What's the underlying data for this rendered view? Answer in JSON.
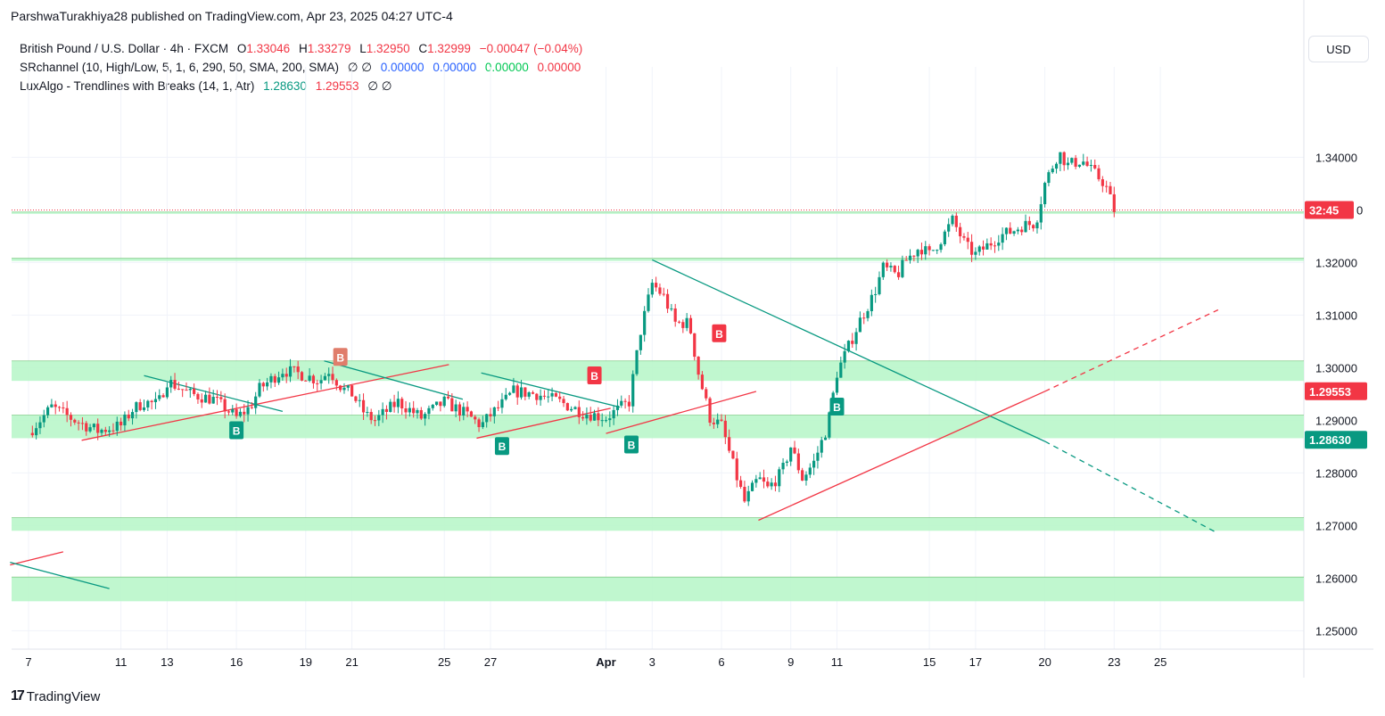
{
  "header": {
    "published": "ParshwaTurakhiya28 published on TradingView.com, Apr 23, 2025 04:27 UTC-4"
  },
  "legend": {
    "symbol": "British Pound / U.S. Dollar · 4h · FXCM",
    "o_label": "O",
    "o_value": "1.33046",
    "h_label": "H",
    "h_value": "1.33279",
    "l_label": "L",
    "l_value": "1.32950",
    "c_label": "C",
    "c_value": "1.32999",
    "change": "−0.00047 (−0.04%)",
    "sr_name": "SRchannel (10, High/Low, 5, 1, 6, 290, 50, SMA, 200, SMA)",
    "sr_sym": "∅ ∅",
    "sr_v1": "0.00000",
    "sr_v2": "0.00000",
    "sr_v3": "0.00000",
    "sr_v4": "0.00000",
    "lux_name": "LuxAlgo - Trendlines with Breaks (14, 1, Atr)",
    "lux_v1": "1.28630",
    "lux_v2": "1.29553",
    "lux_sym": "∅ ∅"
  },
  "currency_button": "USD",
  "brand": {
    "logo": "17",
    "name": "TradingView"
  },
  "price_labels": {
    "countdown": "32:45",
    "countdown_tail": "0",
    "red_level": "1.29553",
    "teal_level": "1.28630"
  },
  "colors": {
    "up": "#089981",
    "down": "#f23645",
    "zone": "#b9f6ca",
    "zone_line": "#4caf50",
    "teal_line": "#089981",
    "red_line": "#f23645"
  },
  "chart_data": {
    "type": "candlestick",
    "symbol": "GBPUSD",
    "timeframe": "4h",
    "y_ticks": [
      "1.34000",
      "1.32000",
      "1.31000",
      "1.30000",
      "1.29000",
      "1.28000",
      "1.27000",
      "1.26000",
      "1.25000"
    ],
    "ylim": [
      1.2465,
      1.3555
    ],
    "x_ticks": [
      {
        "label": "7",
        "day": 0
      },
      {
        "label": "11",
        "day": 4
      },
      {
        "label": "13",
        "day": 6
      },
      {
        "label": "16",
        "day": 9
      },
      {
        "label": "19",
        "day": 12
      },
      {
        "label": "21",
        "day": 14
      },
      {
        "label": "25",
        "day": 18
      },
      {
        "label": "27",
        "day": 20
      },
      {
        "label": "Apr",
        "day": 25
      },
      {
        "label": "3",
        "day": 27
      },
      {
        "label": "6",
        "day": 30
      },
      {
        "label": "9",
        "day": 33
      },
      {
        "label": "11",
        "day": 35
      },
      {
        "label": "15",
        "day": 39
      },
      {
        "label": "17",
        "day": 41
      },
      {
        "label": "20",
        "day": 44
      },
      {
        "label": "23",
        "day": 47
      },
      {
        "label": "25",
        "day": 49
      }
    ],
    "x_bold": [
      "Apr"
    ],
    "sr_zones": [
      [
        1.2975,
        1.3013
      ],
      [
        1.2866,
        1.291
      ],
      [
        1.269,
        1.2715
      ],
      [
        1.2556,
        1.2602
      ],
      [
        1.3203,
        1.3208
      ],
      [
        1.3293,
        1.3296
      ]
    ],
    "close_path": [
      [
        0.0,
        1.2876
      ],
      [
        1.0,
        1.2925
      ],
      [
        2.0,
        1.29
      ],
      [
        3.0,
        1.288
      ],
      [
        4.0,
        1.289
      ],
      [
        4.5,
        1.292
      ],
      [
        5.0,
        1.2935
      ],
      [
        5.6,
        1.293
      ],
      [
        6.0,
        1.2975
      ],
      [
        6.6,
        1.296
      ],
      [
        7.0,
        1.295
      ],
      [
        8.0,
        1.294
      ],
      [
        8.6,
        1.292
      ],
      [
        9.0,
        1.2905
      ],
      [
        9.6,
        1.2925
      ],
      [
        10.0,
        1.296
      ],
      [
        11.0,
        1.2995
      ],
      [
        11.6,
        1.299
      ],
      [
        12.0,
        1.2985
      ],
      [
        12.6,
        1.2975
      ],
      [
        13.0,
        1.2995
      ],
      [
        13.6,
        1.296
      ],
      [
        14.0,
        1.295
      ],
      [
        14.6,
        1.291
      ],
      [
        15.0,
        1.29
      ],
      [
        16.0,
        1.2935
      ],
      [
        17.0,
        1.2905
      ],
      [
        18.0,
        1.2935
      ],
      [
        19.0,
        1.291
      ],
      [
        19.6,
        1.289
      ],
      [
        20.0,
        1.291
      ],
      [
        20.6,
        1.2935
      ],
      [
        21.0,
        1.2955
      ],
      [
        22.0,
        1.295
      ],
      [
        23.0,
        1.2935
      ],
      [
        24.0,
        1.2915
      ],
      [
        25.0,
        1.2905
      ],
      [
        26.0,
        1.2935
      ],
      [
        26.5,
        1.307
      ],
      [
        27.0,
        1.316
      ],
      [
        27.5,
        1.3135
      ],
      [
        28.0,
        1.3085
      ],
      [
        28.6,
        1.3085
      ],
      [
        29.0,
        1.299
      ],
      [
        29.5,
        1.2905
      ],
      [
        30.0,
        1.289
      ],
      [
        30.6,
        1.28
      ],
      [
        31.0,
        1.2745
      ],
      [
        31.6,
        1.279
      ],
      [
        32.0,
        1.277
      ],
      [
        32.6,
        1.28
      ],
      [
        33.0,
        1.285
      ],
      [
        33.5,
        1.279
      ],
      [
        34.0,
        1.282
      ],
      [
        34.6,
        1.289
      ],
      [
        35.0,
        1.299
      ],
      [
        35.6,
        1.305
      ],
      [
        36.0,
        1.309
      ],
      [
        36.6,
        1.314
      ],
      [
        37.0,
        1.319
      ],
      [
        37.6,
        1.3175
      ],
      [
        38.0,
        1.3205
      ],
      [
        38.6,
        1.323
      ],
      [
        39.0,
        1.3215
      ],
      [
        39.6,
        1.325
      ],
      [
        40.0,
        1.328
      ],
      [
        40.6,
        1.323
      ],
      [
        41.0,
        1.3215
      ],
      [
        41.6,
        1.3235
      ],
      [
        42.0,
        1.325
      ],
      [
        42.6,
        1.326
      ],
      [
        43.0,
        1.327
      ],
      [
        43.6,
        1.3275
      ],
      [
        44.0,
        1.335
      ],
      [
        44.6,
        1.341
      ],
      [
        45.0,
        1.3385
      ],
      [
        45.6,
        1.3395
      ],
      [
        46.0,
        1.3375
      ],
      [
        46.6,
        1.335
      ],
      [
        47.0,
        1.33
      ]
    ],
    "signals": [
      {
        "type": "B",
        "color": "up",
        "day": 9,
        "price": 1.2915,
        "below": true
      },
      {
        "type": "B",
        "color": "down_faded",
        "day": 13.5,
        "price": 1.299,
        "below": false
      },
      {
        "type": "B",
        "color": "up",
        "day": 20.5,
        "price": 1.2885,
        "below": true
      },
      {
        "type": "B",
        "color": "down",
        "day": 24.5,
        "price": 1.2955,
        "below": false
      },
      {
        "type": "B",
        "color": "up",
        "day": 26.1,
        "price": 1.2888,
        "below": true
      },
      {
        "type": "B",
        "color": "down",
        "day": 29.9,
        "price": 1.3035,
        "below": false
      },
      {
        "type": "B",
        "color": "up",
        "day": 35.0,
        "price": 1.296,
        "below": true
      }
    ],
    "trendlines": [
      {
        "color": "red",
        "from": [
          -0.8,
          1.2625
        ],
        "to": [
          1.5,
          1.265
        ],
        "dashed": false
      },
      {
        "color": "teal",
        "from": [
          -0.8,
          1.263
        ],
        "to": [
          3.5,
          1.258
        ],
        "dashed": false
      },
      {
        "color": "red",
        "from": [
          2.3,
          1.2862
        ],
        "to": [
          18.2,
          1.3006
        ],
        "dashed": false
      },
      {
        "color": "teal",
        "from": [
          5.0,
          1.2985
        ],
        "to": [
          11.0,
          1.2917
        ],
        "dashed": false
      },
      {
        "color": "teal",
        "from": [
          12.8,
          1.3013
        ],
        "to": [
          18.8,
          1.294
        ],
        "dashed": false
      },
      {
        "color": "red",
        "from": [
          19.4,
          1.2866
        ],
        "to": [
          25.2,
          1.2923
        ],
        "dashed": false
      },
      {
        "color": "teal",
        "from": [
          19.6,
          1.299
        ],
        "to": [
          25.6,
          1.2925
        ],
        "dashed": false
      },
      {
        "color": "red",
        "from": [
          25.0,
          1.2875
        ],
        "to": [
          31.5,
          1.2955
        ],
        "dashed": false
      },
      {
        "color": "teal",
        "from": [
          27.0,
          1.3205
        ],
        "to": [
          44.0,
          1.286
        ],
        "dashed": false
      },
      {
        "color": "teal",
        "from": [
          44.0,
          1.286
        ],
        "to": [
          51.5,
          1.2685
        ],
        "dashed": true
      },
      {
        "color": "red",
        "from": [
          31.6,
          1.271
        ],
        "to": [
          44.0,
          1.2955
        ],
        "dashed": false
      },
      {
        "color": "red",
        "from": [
          44.0,
          1.2955
        ],
        "to": [
          51.5,
          1.311
        ],
        "dashed": true
      }
    ],
    "current_price": 1.32999,
    "red_level": 1.29553,
    "teal_level": 1.2863
  }
}
